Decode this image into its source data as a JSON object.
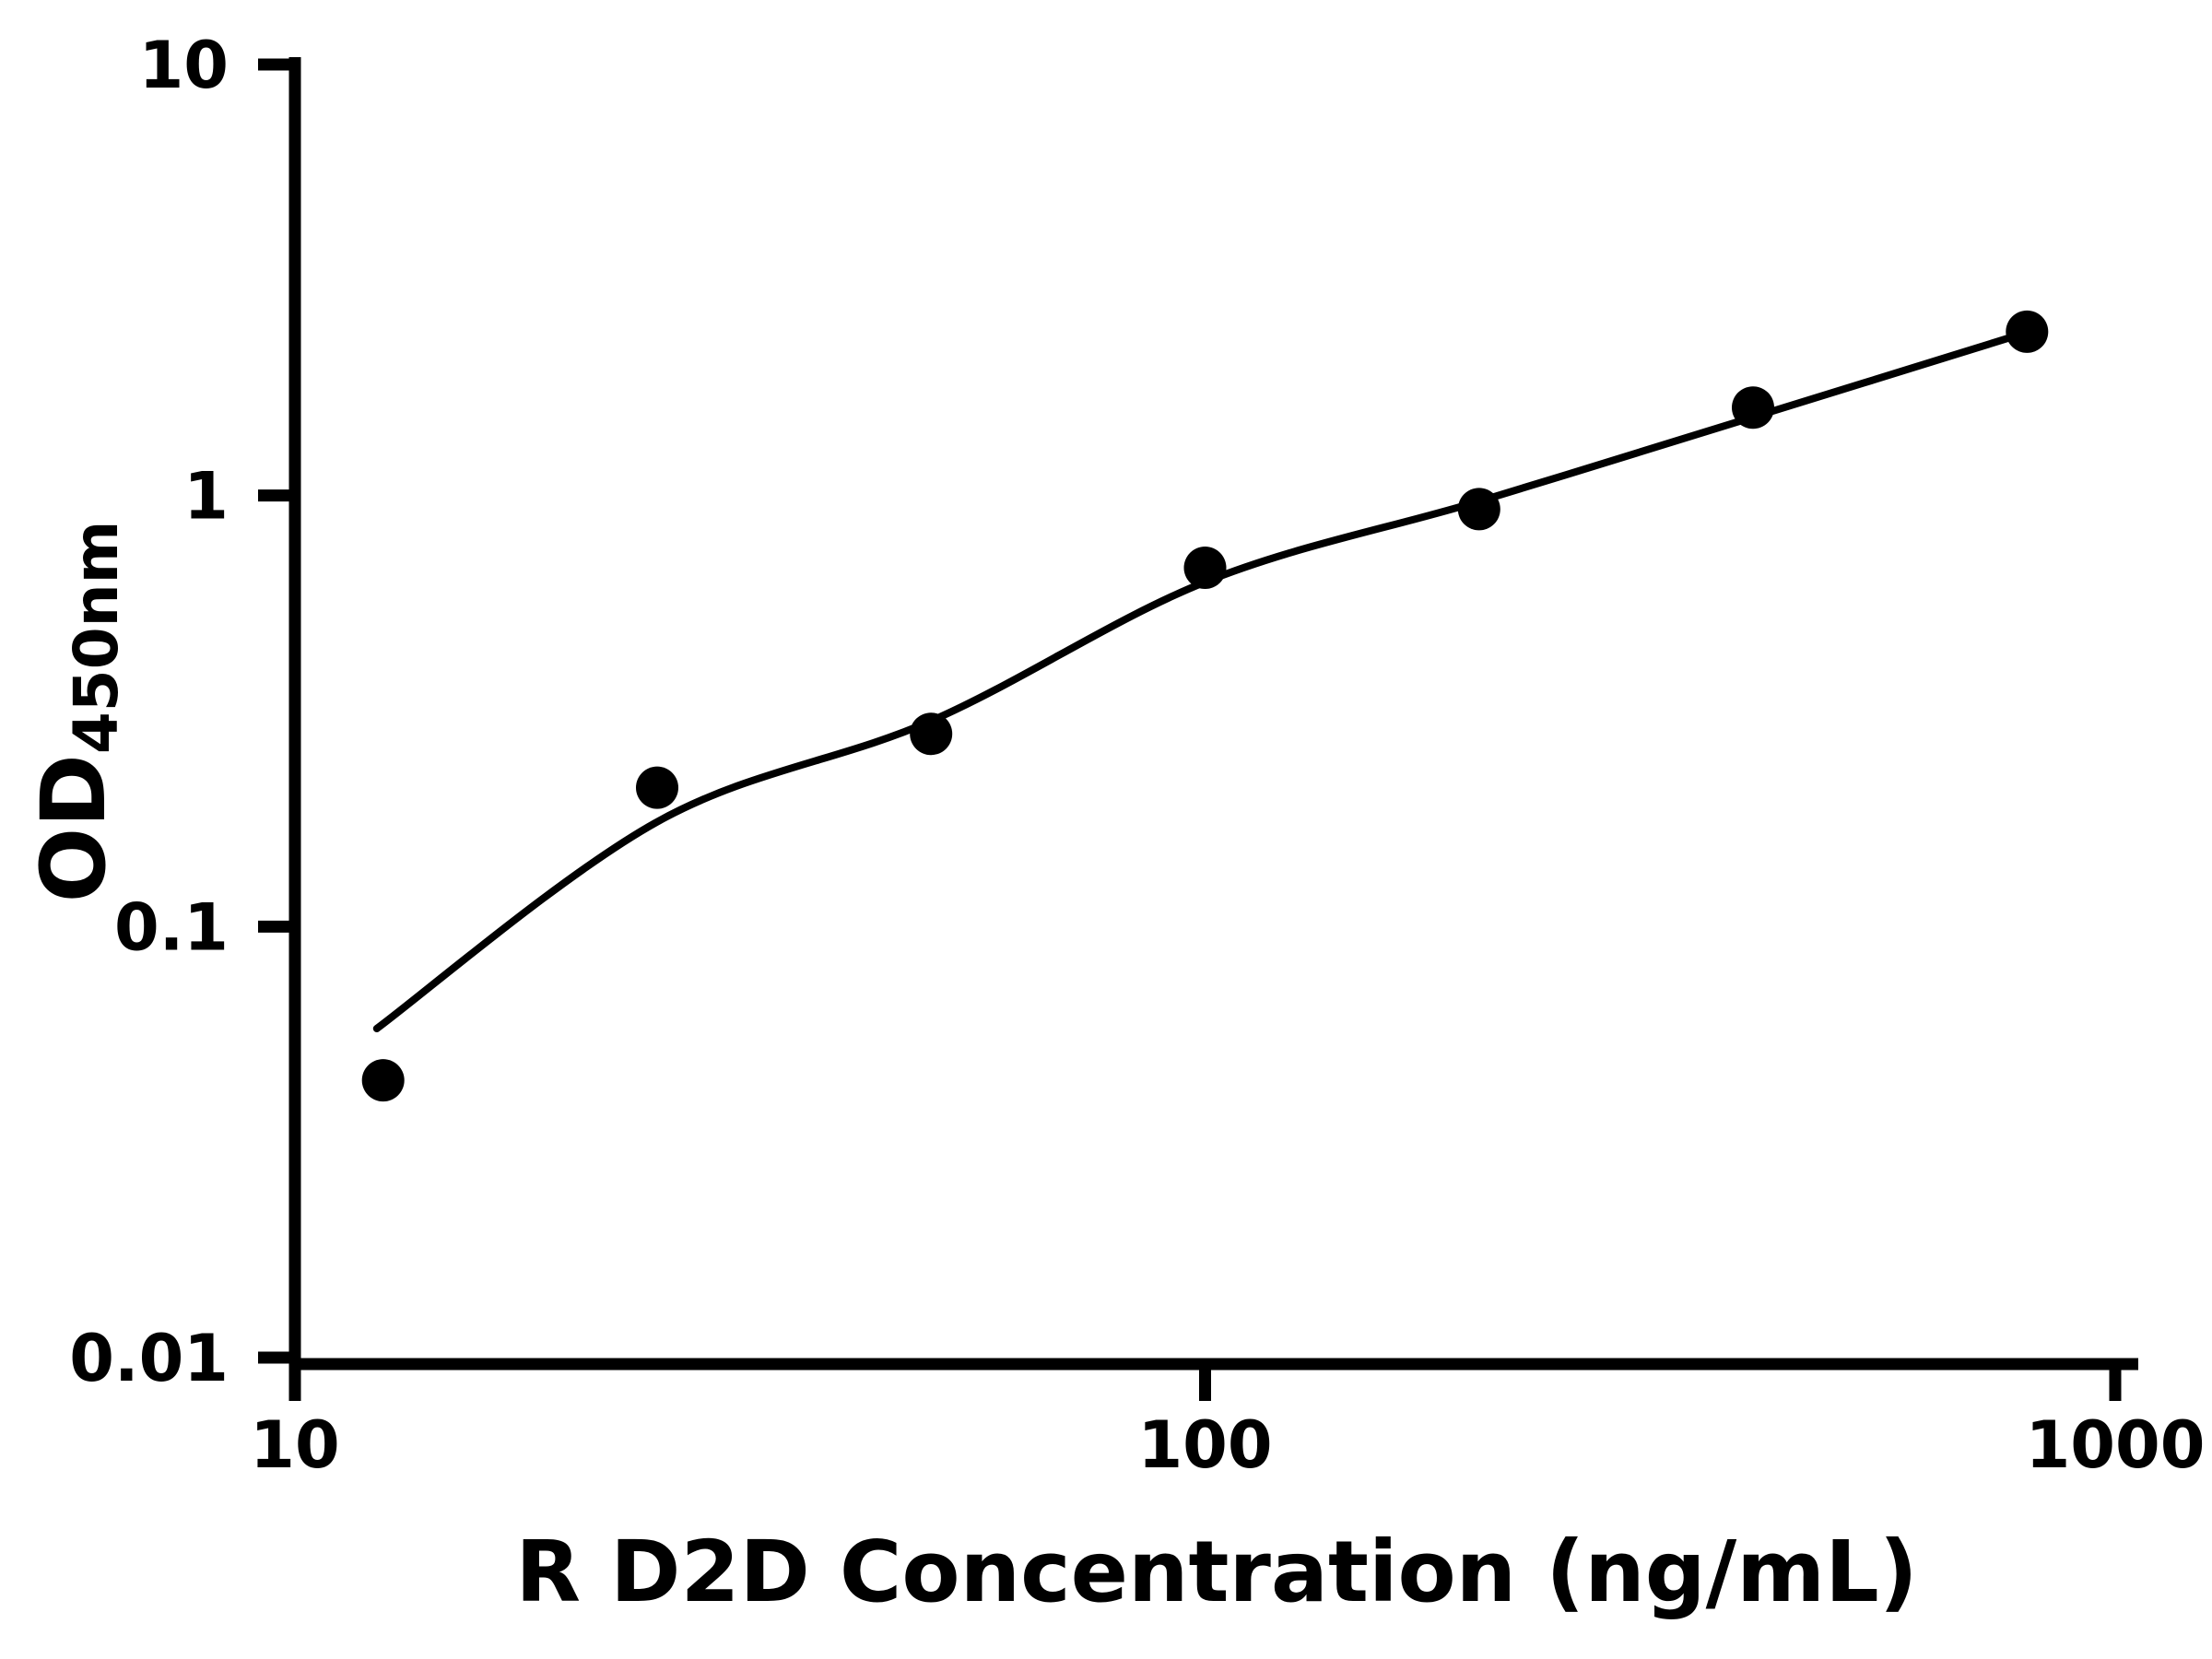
{
  "chart_data": {
    "type": "scatter",
    "title": "",
    "xlabel": "R D2D Concentration (ng/mL)",
    "ylabel_main": "OD",
    "ylabel_sub": "450nm",
    "x_scale": "log",
    "y_scale": "log",
    "xlim": [
      10,
      1000
    ],
    "ylim": [
      0.01,
      10
    ],
    "grid": false,
    "legend": false,
    "background": "#ffffff",
    "axis_color": "#000000",
    "x_ticks": [
      {
        "value": 10,
        "label": "10"
      },
      {
        "value": 100,
        "label": "100"
      },
      {
        "value": 1000,
        "label": "1000"
      }
    ],
    "y_ticks": [
      {
        "value": 0.01,
        "label": "0.01"
      },
      {
        "value": 0.1,
        "label": "0.1"
      },
      {
        "value": 1,
        "label": "1"
      },
      {
        "value": 10,
        "label": "10"
      }
    ],
    "series": [
      {
        "marker": "filled-circle",
        "color": "#000000",
        "points": [
          {
            "x": 12.5,
            "y": 0.044
          },
          {
            "x": 25,
            "y": 0.21
          },
          {
            "x": 50,
            "y": 0.28
          },
          {
            "x": 100,
            "y": 0.68
          },
          {
            "x": 200,
            "y": 0.93
          },
          {
            "x": 400,
            "y": 1.6
          },
          {
            "x": 800,
            "y": 2.4
          }
        ]
      }
    ],
    "fit_curve": {
      "color": "#000000",
      "anchors": [
        {
          "x": 12.3,
          "y": 0.058
        },
        {
          "x": 25,
          "y": 0.175
        },
        {
          "x": 50,
          "y": 0.3
        },
        {
          "x": 100,
          "y": 0.63
        },
        {
          "x": 200,
          "y": 0.97
        },
        {
          "x": 400,
          "y": 1.52
        },
        {
          "x": 830,
          "y": 2.45
        }
      ]
    }
  }
}
